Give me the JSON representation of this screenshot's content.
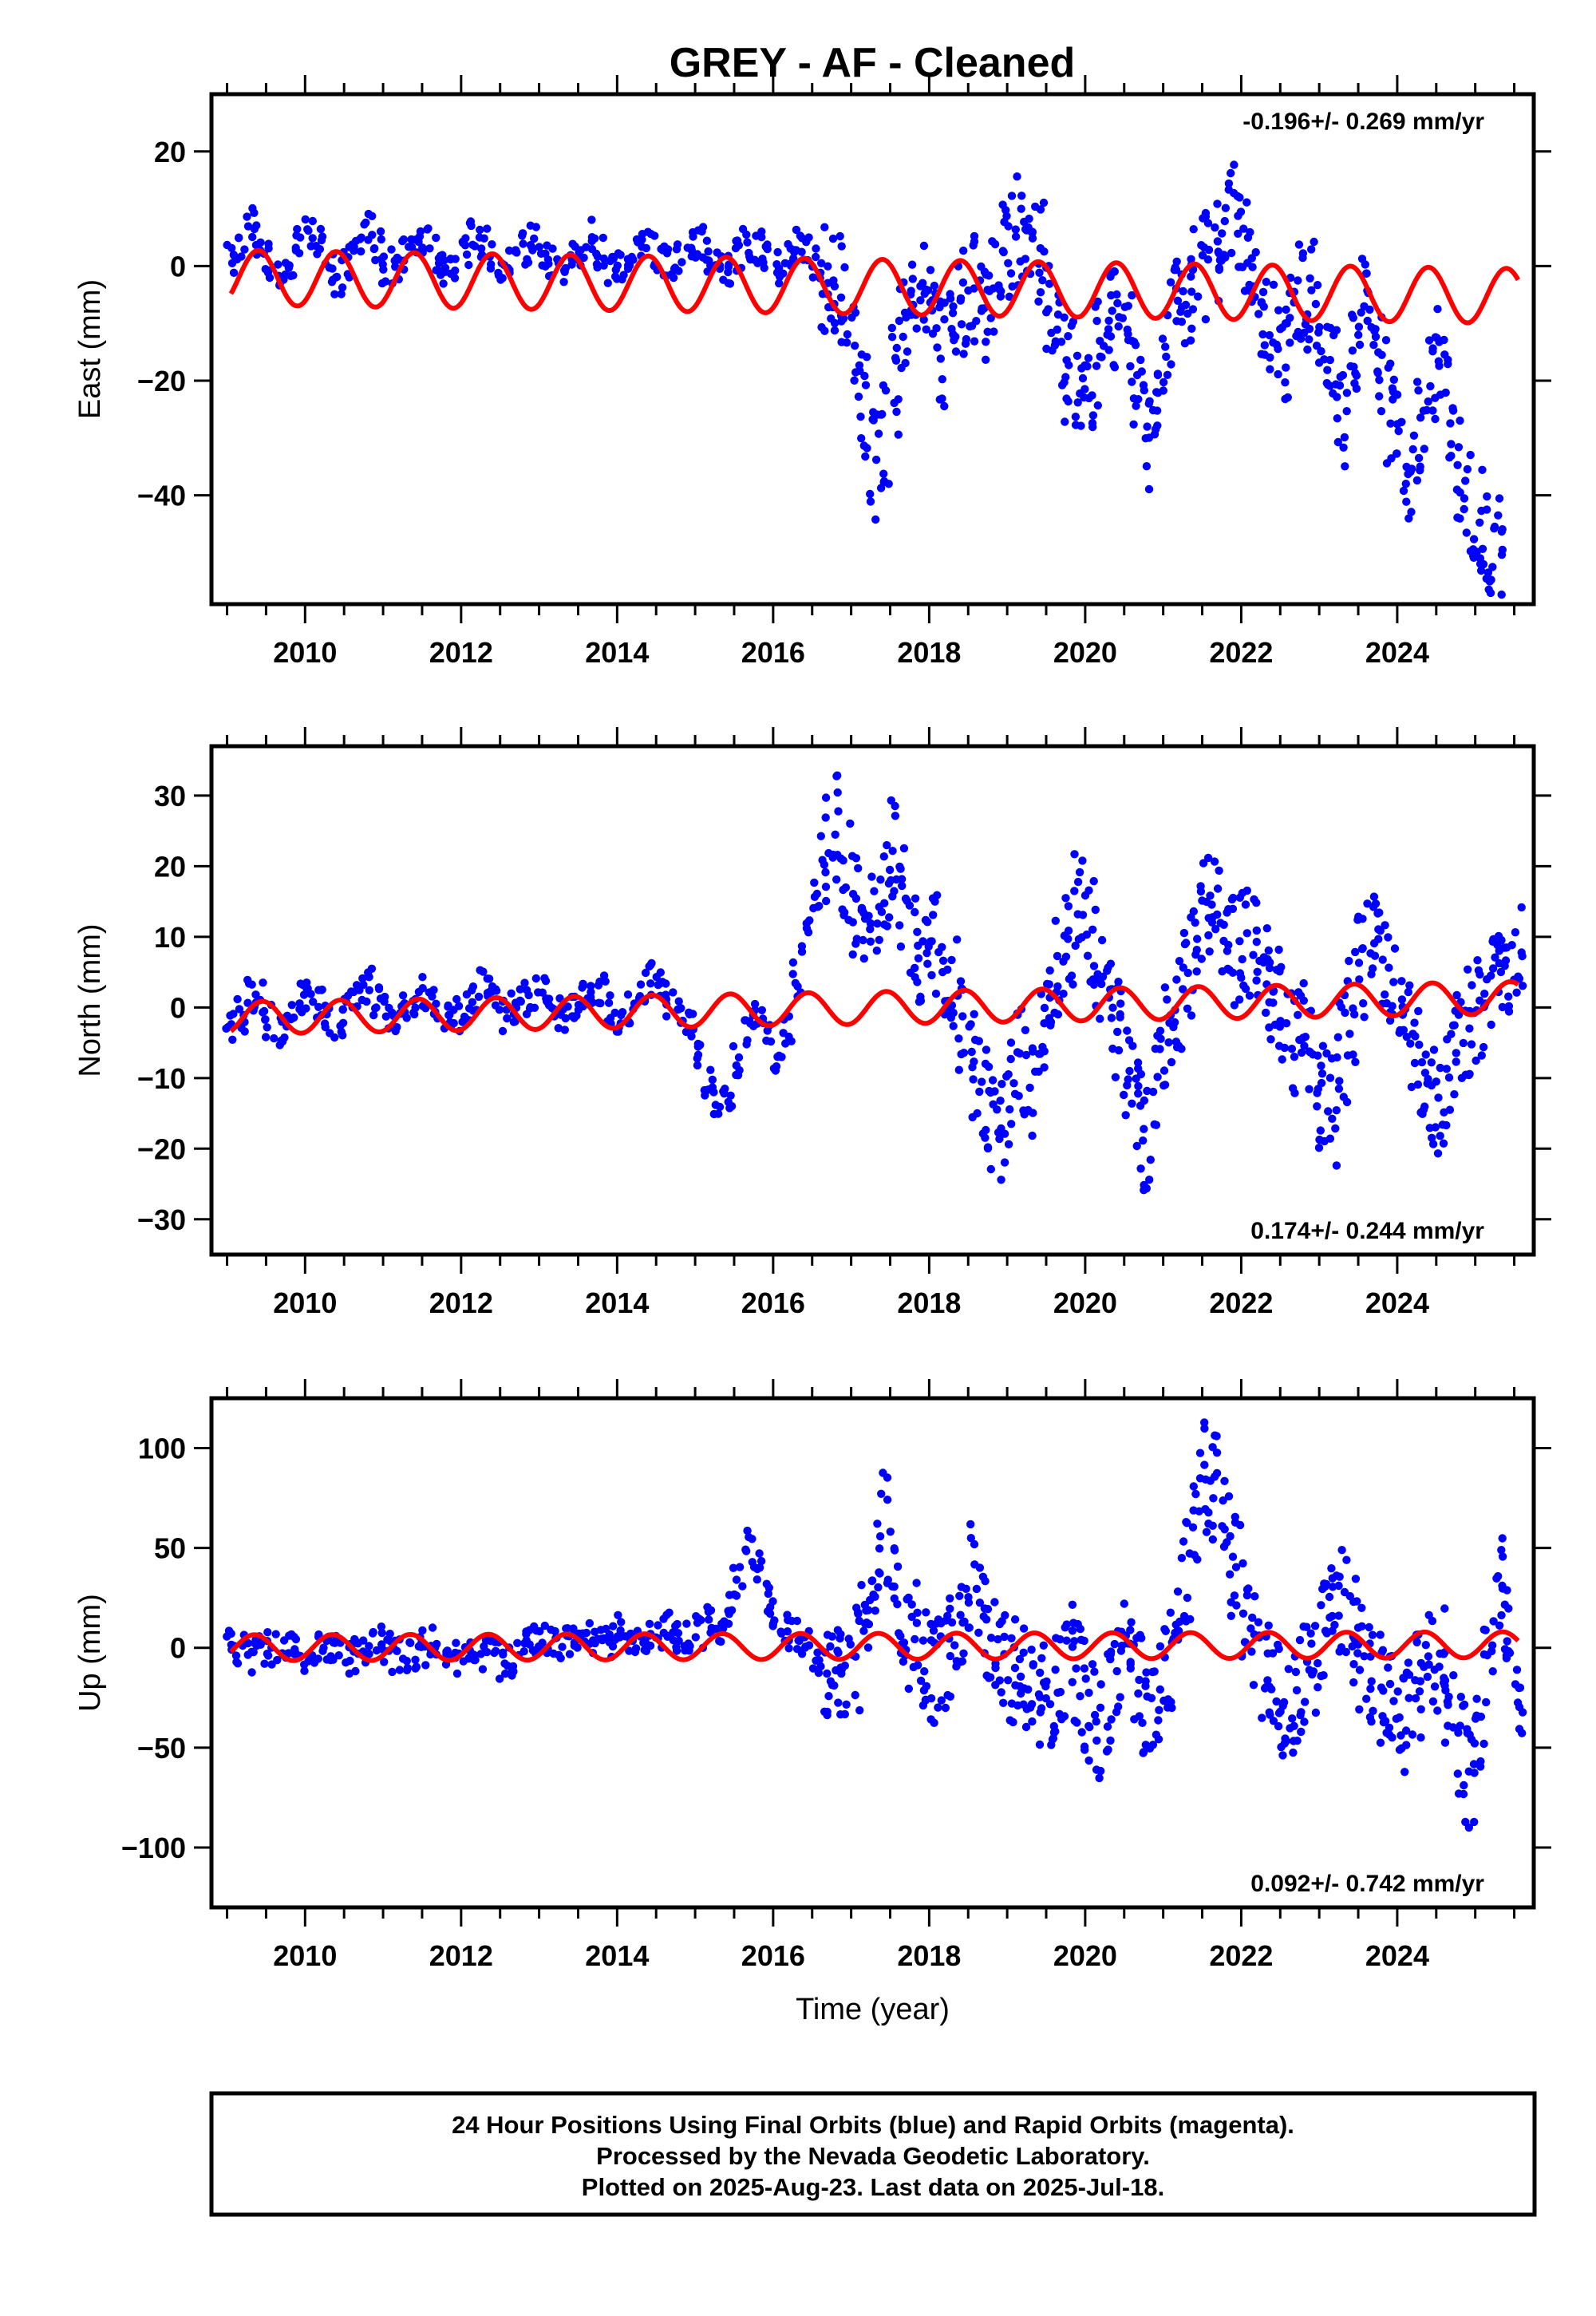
{
  "title": "GREY  - AF - Cleaned",
  "footer": {
    "line1": "24 Hour Positions Using Final Orbits (blue) and Rapid Orbits (magenta).",
    "line2": "Processed by the Nevada Geodetic Laboratory.",
    "line3": "Plotted on 2025-Aug-23. Last data on 2025-Jul-18."
  },
  "colors": {
    "data": "#0000ff",
    "model": "#ff0000",
    "axis": "#000000"
  },
  "chart_data": [
    {
      "type": "scatter",
      "ylabel": "East (mm)",
      "xlabel": "",
      "xlim": [
        2008.8,
        2025.75
      ],
      "ylim": [
        -59,
        30
      ],
      "x_ticks": [
        2010,
        2012,
        2014,
        2016,
        2018,
        2020,
        2022,
        2024
      ],
      "y_ticks": [
        -40,
        -20,
        0,
        20
      ],
      "y_tick_labels": [
        "−40",
        "−20",
        "0",
        "20"
      ],
      "rate_label": "-0.196+/- 0.269 mm/yr",
      "rate_position": "top-right",
      "series": [
        {
          "role": "data",
          "x_start": 2009.05,
          "x_end": 2025.55,
          "x_step": 0.125,
          "y": [
            1,
            4,
            7,
            5,
            1,
            -2,
            1,
            5,
            6,
            4,
            0,
            -2,
            1,
            4,
            6,
            3,
            0,
            -1,
            2,
            4,
            5,
            2,
            -1,
            -1,
            2,
            5,
            4,
            1,
            -1,
            0,
            3,
            4,
            3,
            0,
            -1,
            1,
            3,
            5,
            2,
            0,
            0,
            2,
            4,
            3,
            1,
            0,
            1,
            3,
            4,
            2,
            0,
            -1,
            2,
            4,
            3,
            1,
            0,
            1,
            4,
            3,
            0,
            -2,
            -3,
            -6,
            -14,
            -25,
            -35,
            -30,
            -20,
            -12,
            -8,
            -6,
            -10,
            -15,
            -12,
            -6,
            -4,
            -8,
            -3,
            2,
            4,
            6,
            8,
            3,
            -5,
            -12,
            -18,
            -22,
            -25,
            -15,
            -10,
            -8,
            -14,
            -20,
            -30,
            -22,
            -12,
            -8,
            -5,
            -3,
            0,
            2,
            6,
            8,
            4,
            -2,
            -8,
            -12,
            -15,
            -10,
            -6,
            -5,
            -12,
            -20,
            -26,
            -15,
            -8,
            -10,
            -18,
            -25,
            -30,
            -35,
            -28,
            -20,
            -15,
            -25,
            -35,
            -42,
            -45,
            -48,
            -50
          ]
        },
        {
          "role": "model",
          "x_start": 2009.05,
          "x_end": 2025.55,
          "offset": -2,
          "trend_mm_per_yr": -0.196,
          "amplitude": 4.8,
          "phase_yr": 0.15
        }
      ]
    },
    {
      "type": "scatter",
      "ylabel": "North (mm)",
      "xlabel": "",
      "xlim": [
        2008.8,
        2025.75
      ],
      "ylim": [
        -35,
        37
      ],
      "x_ticks": [
        2010,
        2012,
        2014,
        2016,
        2018,
        2020,
        2022,
        2024
      ],
      "y_ticks": [
        -30,
        -20,
        -10,
        0,
        10,
        20,
        30
      ],
      "y_tick_labels": [
        "−30",
        "−20",
        "−10",
        "0",
        "10",
        "20",
        "30"
      ],
      "rate_label": "0.174+/- 0.244 mm/yr",
      "rate_position": "bottom-right",
      "series": [
        {
          "role": "data",
          "x_start": 2009.05,
          "x_end": 2025.55,
          "x_step": 0.125,
          "y": [
            -3,
            -1,
            2,
            1,
            -2,
            -3,
            -1,
            1,
            2,
            0,
            -2,
            -2,
            0,
            2,
            3,
            1,
            -1,
            -1,
            0,
            1,
            2,
            0,
            -1,
            -1,
            0,
            2,
            3,
            1,
            -1,
            0,
            1,
            2,
            3,
            1,
            -1,
            0,
            2,
            3,
            2,
            0,
            -1,
            0,
            2,
            4,
            3,
            1,
            -1,
            -2,
            -6,
            -10,
            -14,
            -12,
            -8,
            -4,
            -2,
            -4,
            -8,
            -3,
            4,
            10,
            16,
            22,
            25,
            20,
            14,
            10,
            12,
            18,
            22,
            15,
            10,
            8,
            9,
            6,
            2,
            -2,
            -8,
            -12,
            -15,
            -18,
            -12,
            -8,
            -12,
            -6,
            0,
            5,
            10,
            14,
            10,
            6,
            2,
            -4,
            -10,
            -15,
            -18,
            -10,
            -4,
            2,
            6,
            10,
            14,
            18,
            12,
            8,
            9,
            8,
            5,
            2,
            -2,
            -5,
            -3,
            -8,
            -12,
            -15,
            -6,
            0,
            6,
            10,
            8,
            4,
            0,
            -4,
            -8,
            -12,
            -16,
            -10,
            -4,
            -2,
            0,
            3,
            6,
            7,
            8
          ]
        },
        {
          "role": "model",
          "x_start": 2009.05,
          "x_end": 2025.55,
          "offset": -1.5,
          "trend_mm_per_yr": 0.174,
          "amplitude": 2.3,
          "phase_yr": 0.2
        }
      ]
    },
    {
      "type": "scatter",
      "ylabel": "Up (mm)",
      "xlabel": "Time (year)",
      "xlim": [
        2008.8,
        2025.75
      ],
      "ylim": [
        -130,
        125
      ],
      "x_ticks": [
        2010,
        2012,
        2014,
        2016,
        2018,
        2020,
        2022,
        2024
      ],
      "y_ticks": [
        -100,
        -50,
        0,
        50,
        100
      ],
      "y_tick_labels": [
        "−100",
        "−50",
        "0",
        "50",
        "100"
      ],
      "rate_label": "0.092+/- 0.742 mm/yr",
      "rate_position": "bottom-right",
      "series": [
        {
          "role": "data",
          "x_start": 2009.05,
          "x_end": 2025.55,
          "x_step": 0.125,
          "y": [
            2,
            -2,
            -5,
            -3,
            0,
            2,
            -2,
            -4,
            -6,
            -2,
            0,
            -3,
            -5,
            -4,
            0,
            2,
            -1,
            -4,
            -6,
            -3,
            0,
            2,
            -2,
            -6,
            -8,
            -5,
            -2,
            -4,
            -8,
            -6,
            0,
            3,
            6,
            4,
            2,
            5,
            8,
            5,
            2,
            4,
            8,
            6,
            3,
            5,
            8,
            10,
            7,
            5,
            8,
            12,
            10,
            20,
            35,
            50,
            40,
            25,
            15,
            8,
            5,
            0,
            -5,
            -8,
            -12,
            -15,
            -5,
            15,
            40,
            60,
            35,
            15,
            5,
            -5,
            -15,
            -10,
            0,
            20,
            35,
            20,
            5,
            -5,
            -12,
            -8,
            -15,
            -25,
            -35,
            -20,
            -5,
            -15,
            -30,
            -40,
            -25,
            -10,
            -5,
            -15,
            -30,
            -25,
            -10,
            10,
            40,
            70,
            85,
            80,
            60,
            40,
            20,
            5,
            -10,
            -20,
            -30,
            -25,
            -15,
            -5,
            10,
            35,
            25,
            10,
            -5,
            -15,
            -20,
            -30,
            -40,
            -35,
            -20,
            -10,
            -5,
            -25,
            -50,
            -65,
            -40,
            -10,
            30,
            20,
            -20,
            -50,
            -55,
            -50
          ]
        },
        {
          "role": "model",
          "x_start": 2009.05,
          "x_end": 2025.55,
          "offset": 0,
          "trend_mm_per_yr": 0.092,
          "amplitude": 6.5,
          "phase_yr": 0.1
        }
      ]
    }
  ]
}
